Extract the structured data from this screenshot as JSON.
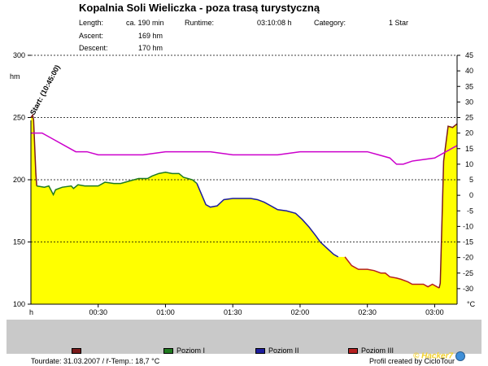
{
  "header": {
    "title": "Kopalnia Soli Wieliczka - poza trasą turystyczną",
    "length_label": "Length:",
    "length_value": "ca. 190 min",
    "runtime_label": "Runtime:",
    "runtime_value": "03:10:08 h",
    "category_label": "Category:",
    "category_value": "1 Star",
    "ascent_label": "Ascent:",
    "ascent_value": "169 hm",
    "descent_label": "Descent:",
    "descent_value": "170 hm"
  },
  "legend": {
    "items": [
      {
        "label": "",
        "color": "#7b1b1b"
      },
      {
        "label": "Poziom I",
        "color": "#1f7a1f"
      },
      {
        "label": "Poziom II",
        "color": "#1c1c9c"
      },
      {
        "label": "Poziom III",
        "color": "#b52020"
      }
    ]
  },
  "footer": {
    "tourdate": "Tourdate: 31.03.2007  /  ř-Temp.: 18,7 °C",
    "credit": "Profil created by CicloTour",
    "logo_text": "© Hacker7"
  },
  "chart_data": {
    "type": "area",
    "start_label": "Start: (10:45:00)",
    "left_unit": "hm",
    "right_unit": "°C",
    "xlabel_start": "h",
    "xlim": [
      0,
      190
    ],
    "ylim_left": [
      100,
      300
    ],
    "ylim_right": [
      -35,
      45
    ],
    "x_ticks": [
      {
        "value": 30,
        "label": "00:30"
      },
      {
        "value": 60,
        "label": "01:00"
      },
      {
        "value": 90,
        "label": "01:30"
      },
      {
        "value": 120,
        "label": "02:00"
      },
      {
        "value": 150,
        "label": "02:30"
      },
      {
        "value": 180,
        "label": "03:00"
      }
    ],
    "y_left_ticks": [
      100,
      150,
      200,
      250,
      300
    ],
    "y_right_ticks": [
      45,
      40,
      35,
      30,
      25,
      20,
      15,
      10,
      5,
      0,
      -5,
      -10,
      -15,
      -20,
      -25,
      -30
    ],
    "grid": "horizontal dotted",
    "altitude": {
      "name": "Altitude",
      "fill": "#ffff00",
      "x": [
        0,
        0.8,
        1.2,
        2.2,
        2.6,
        6,
        8,
        10,
        11,
        14,
        18,
        19,
        21,
        24,
        28,
        30,
        33,
        37,
        40,
        44,
        48,
        52,
        54,
        57,
        60,
        63,
        66,
        68,
        72,
        74,
        78,
        80,
        83,
        86,
        90,
        94,
        98,
        101,
        104,
        108,
        110,
        114,
        118,
        121,
        124,
        127,
        129,
        132,
        135,
        137,
        140,
        143,
        146,
        148,
        150,
        153,
        156,
        158,
        160,
        163,
        165,
        168,
        170,
        172,
        175,
        177,
        179,
        181,
        182,
        182.5,
        184,
        186,
        188,
        190
      ],
      "segments": [
        {
          "name": "",
          "from": 0,
          "to": 2.6
        },
        {
          "name": "Poziom I",
          "from": 2.6,
          "to": 74
        },
        {
          "name": "Poziom II",
          "from": 74,
          "to": 138
        },
        {
          "name": "Poziom III",
          "from": 138,
          "to": 182
        },
        {
          "name": "",
          "from": 182,
          "to": 190
        }
      ],
      "y": [
        250,
        252,
        248,
        205,
        195,
        194,
        195,
        188,
        192,
        194,
        195,
        193,
        196,
        195,
        195,
        195,
        198,
        197,
        197,
        199,
        201,
        201,
        203,
        205,
        206,
        205,
        205,
        202,
        200,
        197,
        180,
        178,
        179,
        184,
        185,
        185,
        185,
        184,
        182,
        178,
        176,
        175,
        173,
        168,
        162,
        155,
        150,
        145,
        140,
        138,
        138,
        131,
        128,
        128,
        128,
        127,
        125,
        125,
        122,
        121,
        120,
        118,
        116,
        116,
        116,
        114,
        116,
        114,
        113,
        117,
        215,
        243,
        242,
        245
      ]
    },
    "temperature": {
      "name": "Temperature",
      "color": "#cc00cc",
      "x": [
        0,
        5,
        10,
        15,
        20,
        25,
        30,
        40,
        50,
        60,
        70,
        80,
        90,
        100,
        110,
        120,
        130,
        140,
        150,
        155,
        160,
        163,
        166,
        170,
        180,
        185,
        190
      ],
      "y": [
        20,
        20,
        18,
        16,
        14,
        14,
        13,
        13,
        13,
        14,
        14,
        14,
        13,
        13,
        13,
        14,
        14,
        14,
        14,
        13,
        12,
        10,
        10,
        11,
        12,
        14,
        16
      ]
    }
  }
}
